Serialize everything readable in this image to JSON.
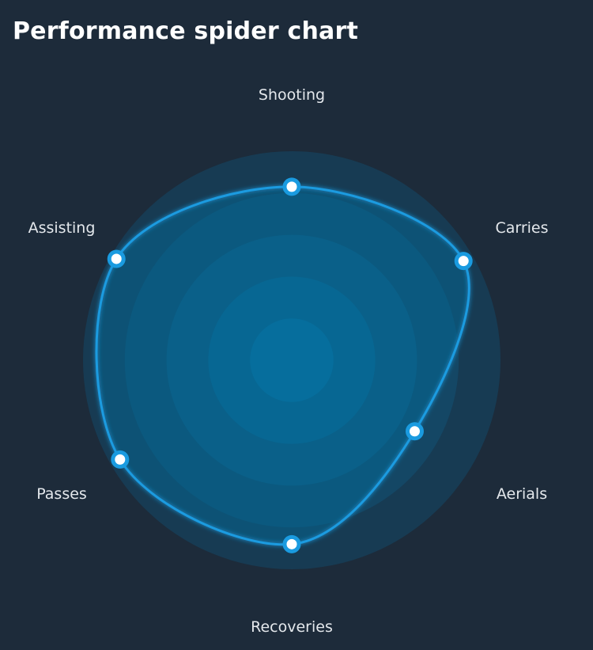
{
  "chart_data": {
    "type": "radar",
    "title": "Performance spider chart",
    "categories": [
      "Shooting",
      "Carries",
      "Aerials",
      "Recoveries",
      "Passes",
      "Assisting"
    ],
    "values": [
      83,
      95,
      68,
      88,
      95,
      97
    ],
    "range": [
      0,
      100
    ],
    "rings": 5,
    "grid": true,
    "legend": "none",
    "colors": {
      "background": "#1d2b3a",
      "ring_inner": "#0a6c9b",
      "ring_outer": "#173b53",
      "line": "#1a9be0",
      "marker_fill": "#ffffff"
    }
  }
}
